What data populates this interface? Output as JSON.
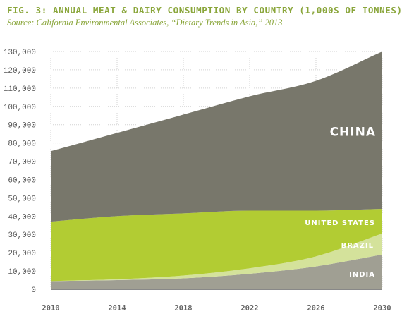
{
  "figure": {
    "title": "FIG. 3: ANNUAL MEAT & DAIRY CONSUMPTION BY COUNTRY (1,000S OF TONNES)",
    "subtitle": "Source: California Environmental Associates, “Dietary Trends in Asia,” 2013"
  },
  "chart_data": {
    "type": "area",
    "stacked": true,
    "title": "FIG. 3: ANNUAL MEAT & DAIRY CONSUMPTION BY COUNTRY (1,000S OF TONNES)",
    "subtitle": "Source: California Environmental Associates, “Dietary Trends in Asia,” 2013",
    "x": [
      2010,
      2014,
      2018,
      2022,
      2026,
      2030
    ],
    "x_tick_labels": [
      "2010",
      "2014",
      "2018",
      "2022",
      "2026",
      "2030"
    ],
    "ylim": [
      0,
      130000
    ],
    "y_tick_labels": [
      "0",
      "10,000",
      "20,000",
      "30,000",
      "40,000",
      "50,000",
      "60,000",
      "70,000",
      "80,000",
      "90,000",
      "100,000",
      "110,000",
      "120,000",
      "130,000"
    ],
    "grid": "horizontal",
    "series": [
      {
        "name": "INDIA",
        "color": "#a09f93",
        "values": [
          4500,
          5000,
          6000,
          8500,
          12500,
          19000
        ]
      },
      {
        "name": "BRAZIL",
        "color": "#d4e29b",
        "values": [
          0,
          500,
          1500,
          3000,
          5500,
          11500
        ]
      },
      {
        "name": "UNITED STATES",
        "color": "#b2cc33",
        "values": [
          32500,
          34500,
          34000,
          31500,
          25000,
          13500
        ]
      },
      {
        "name": "CHINA",
        "color": "#78776b",
        "values": [
          38500,
          45500,
          54000,
          62500,
          71000,
          86000
        ]
      }
    ]
  }
}
